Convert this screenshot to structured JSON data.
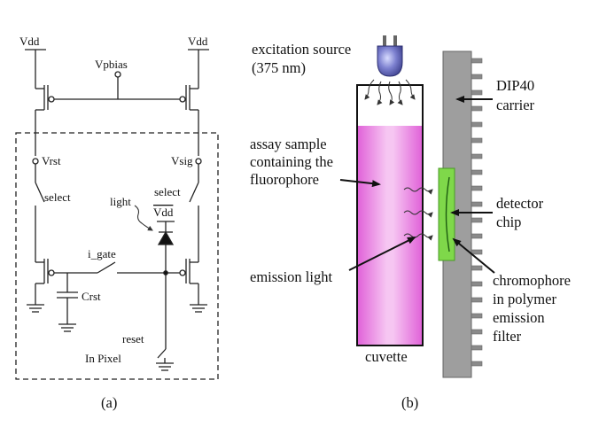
{
  "circuit": {
    "vdd_left": "Vdd",
    "vdd_right": "Vdd",
    "vpbias": "Vpbias",
    "vrst": "Vrst",
    "vsig": "Vsig",
    "select_left": "select",
    "select_right": "select",
    "light": "light",
    "vdd_pixel": "Vdd",
    "i_gate": "i_gate",
    "crst": "Crst",
    "reset": "reset",
    "in_pixel": "In Pixel",
    "caption": "(a)"
  },
  "setup": {
    "excitation_line1": "excitation source",
    "excitation_line2": "(375 nm)",
    "assay_line1": "assay sample",
    "assay_line2": "containing the",
    "assay_line3": "fluorophore",
    "emission": "emission light",
    "cuvette": "cuvette",
    "dip_line1": "DIP40",
    "dip_line2": "carrier",
    "detector_line1": "detector",
    "detector_line2": "chip",
    "chromo_line1": "chromophore",
    "chromo_line2": "in polymer",
    "chromo_line3": "emission",
    "chromo_line4": "filter",
    "caption": "(b)"
  },
  "colors": {
    "sample": "#e879e0",
    "filter": "#7fd84a",
    "carrier": "#9e9e9e",
    "led": "#5b5fb0"
  }
}
